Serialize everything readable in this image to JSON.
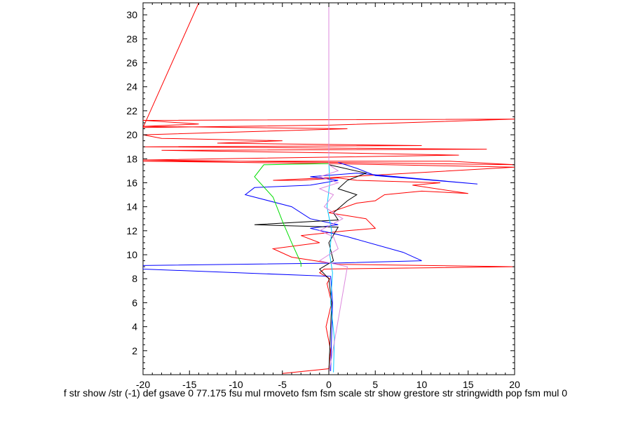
{
  "chart_data": {
    "type": "line",
    "xlim": [
      -20,
      20
    ],
    "ylim": [
      0,
      31
    ],
    "x_ticks": [
      -20,
      -15,
      -10,
      -5,
      0,
      5,
      10,
      15,
      20
    ],
    "x_tick_labels": [
      "-20",
      "-15",
      "-10",
      "-5",
      "0",
      "5",
      "10",
      "15",
      "20"
    ],
    "y_ticks": [
      2,
      4,
      6,
      8,
      10,
      12,
      14,
      16,
      18,
      20,
      22,
      24,
      26,
      28,
      30
    ],
    "y_tick_labels": [
      "2",
      "4",
      "6",
      "8",
      "10",
      "12",
      "14",
      "16",
      "18",
      "20",
      "22",
      "24",
      "26",
      "28",
      "30"
    ],
    "grid": false,
    "legend": "none",
    "series": [
      {
        "color": "#ff0000",
        "x": [
          -5,
          0,
          0.2,
          -0.3,
          0.3,
          -0.2,
          0.1,
          -1,
          -0.5,
          20,
          1,
          -4,
          -6,
          -1,
          -3,
          2,
          5,
          4,
          0,
          3,
          5,
          6,
          10,
          15,
          9,
          12,
          3,
          1,
          -3,
          -6,
          2,
          20,
          0,
          -20,
          13,
          20,
          -20,
          14,
          0,
          -18,
          17,
          -20,
          10,
          -12,
          -5,
          -18,
          -20,
          2,
          -20,
          -14,
          -20,
          20,
          0,
          -20,
          -14
        ],
        "y": [
          0.1,
          0.5,
          2,
          4,
          6,
          7.6,
          8,
          8.5,
          8.8,
          9,
          9.2,
          9.8,
          10.5,
          11,
          11.6,
          12,
          12.2,
          13,
          13.5,
          14.3,
          14.5,
          15,
          15.3,
          15.1,
          15.8,
          16,
          16.2,
          16.4,
          16.2,
          16.2,
          16.5,
          17.3,
          17.6,
          17.8,
          17.8,
          17.5,
          17.9,
          18.3,
          18.5,
          18.7,
          18.8,
          19,
          19.1,
          19.3,
          19.5,
          19.7,
          20,
          20.5,
          20.7,
          20.9,
          21.2,
          21.3,
          20.8,
          20.6,
          31
        ]
      },
      {
        "color": "#0000ff",
        "x": [
          0.2,
          0.4,
          0.2,
          -20,
          -20,
          0.5,
          10,
          8,
          2,
          -2,
          1,
          -2,
          -4,
          -9,
          -8,
          -2,
          1,
          -2,
          3,
          16,
          5,
          3,
          1
        ],
        "y": [
          0.3,
          6,
          8.2,
          8.8,
          9.1,
          9.3,
          9.5,
          10.2,
          11.5,
          12.2,
          12.5,
          13,
          14,
          15,
          15.6,
          15.8,
          16.2,
          16.5,
          16.8,
          15.9,
          16.6,
          17.2,
          17.7
        ]
      },
      {
        "color": "#000000",
        "x": [
          0,
          0.3,
          0,
          -1,
          0.5,
          0,
          1,
          -8,
          1,
          0.5,
          2,
          3,
          1,
          2,
          3,
          4,
          0
        ],
        "y": [
          0.2,
          6,
          8,
          8.8,
          9.5,
          11,
          12.3,
          12.5,
          12.9,
          13.5,
          14.5,
          15,
          15.5,
          16.2,
          16.5,
          16.8,
          17.5
        ]
      },
      {
        "color": "#00dd00",
        "x": [
          -3,
          -3,
          -4,
          -5,
          -6,
          -8,
          -7,
          0
        ],
        "y": [
          9,
          9.3,
          11,
          12.8,
          14.8,
          16.5,
          17.5,
          17.6
        ]
      },
      {
        "color": "#00c8ff",
        "x": [
          0.5,
          0.6,
          0.2,
          0.4,
          0.1,
          0.3,
          -0.2,
          0.1,
          0
        ],
        "y": [
          0.2,
          3,
          6,
          8.5,
          10,
          12,
          14,
          16,
          17.7
        ]
      },
      {
        "color": "#dd88dd",
        "x": [
          0.1,
          0.1,
          2,
          -1,
          1,
          0.5,
          -1,
          1.5,
          -0.5,
          0.5,
          -1,
          1,
          -1,
          1,
          0,
          0,
          0
        ],
        "y": [
          0.3,
          0.5,
          9,
          9.5,
          10.5,
          11.5,
          12,
          13,
          14,
          15,
          15.5,
          16,
          16.5,
          17,
          17.5,
          20,
          31
        ]
      }
    ]
  },
  "caption": "f str show /str (-1) def gsave 0 77.175 fsu mul rmoveto fsm fsm scale str show grestore str stringwidth pop fsm mul 0"
}
